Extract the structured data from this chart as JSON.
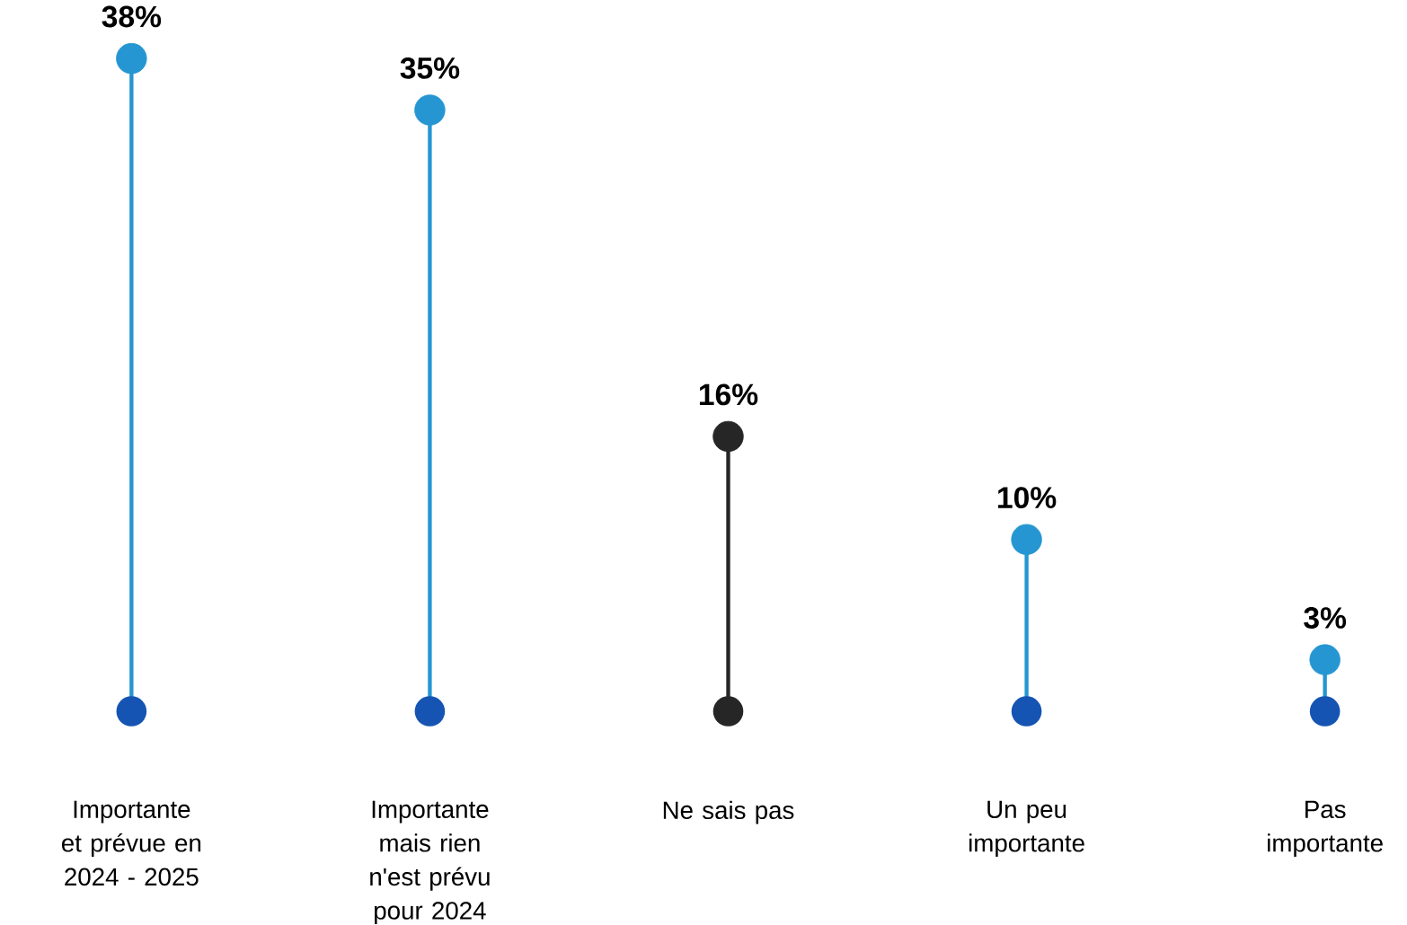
{
  "chart_data": {
    "type": "lollipop",
    "categories": [
      "Importante et prévue en 2024 - 2025",
      "Importante mais rien n'est prévu pour 2024",
      "Ne sais pas",
      "Un peu importante",
      "Pas importante"
    ],
    "values": [
      38,
      35,
      16,
      10,
      3
    ],
    "value_labels": [
      "38%",
      "35%",
      "16%",
      "10%",
      "3%"
    ],
    "colors": [
      "#2596d1",
      "#2596d1",
      "#262626",
      "#2596d1",
      "#2596d1"
    ],
    "marker": "circle",
    "tick_labels": "x"
  }
}
